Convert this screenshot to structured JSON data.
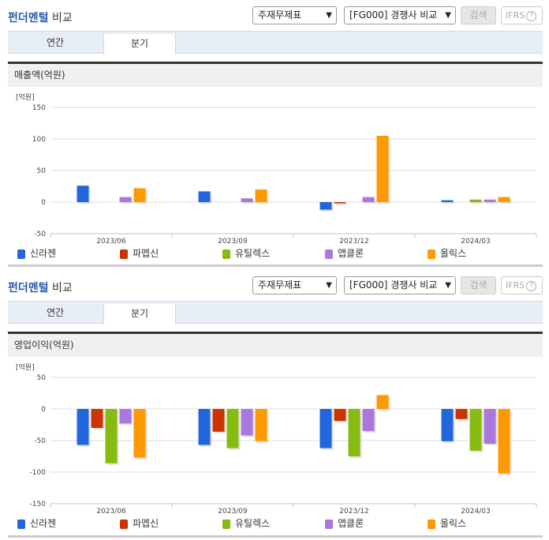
{
  "panels": [
    {
      "title_highlight": "펀더멘털",
      "title_rest": " 비교",
      "select_statement": "주재무제표",
      "select_compare": "[FG000] 경쟁사 비교",
      "search_label": "검색",
      "ifrs_label": "IFRS",
      "ifrs_help": "?",
      "tabs": [
        {
          "label": "연간"
        },
        {
          "label": "분기",
          "active": true
        }
      ],
      "subheading": "매출액(억원)",
      "unit": "[억원]",
      "y_ticks": [
        "150",
        "100",
        "50",
        "0",
        "-50"
      ]
    },
    {
      "title_highlight": "펀더멘털",
      "title_rest": " 비교",
      "select_statement": "주재무제표",
      "select_compare": "[FG000] 경쟁사 비교",
      "search_label": "검색",
      "ifrs_label": "IFRS",
      "ifrs_help": "?",
      "tabs": [
        {
          "label": "연간"
        },
        {
          "label": "분기",
          "active": true
        }
      ],
      "subheading": "영업이익(억원)",
      "unit": "[억원]",
      "y_ticks": [
        "50",
        "0",
        "-50",
        "-100",
        "-150"
      ]
    }
  ],
  "legend": [
    {
      "name": "신라젠",
      "color": "#2266dd"
    },
    {
      "name": "파멥신",
      "color": "#cc3300"
    },
    {
      "name": "유틸렉스",
      "color": "#88bb11"
    },
    {
      "name": "앱클론",
      "color": "#aa77dd"
    },
    {
      "name": "올릭스",
      "color": "#ff9900"
    }
  ],
  "chart_data": [
    {
      "type": "bar",
      "title": "매출액(억원)",
      "ylabel": "[억원]",
      "categories": [
        "2023/06",
        "2023/09",
        "2023/12",
        "2024/03"
      ],
      "ylim": [
        -50,
        150
      ],
      "yticks": [
        -50,
        0,
        50,
        100,
        150
      ],
      "grid": true,
      "legend_position": "bottom",
      "series": [
        {
          "name": "신라젠",
          "color": "#2266dd",
          "values": [
            26,
            17,
            -12,
            3
          ]
        },
        {
          "name": "파멥신",
          "color": "#cc3300",
          "values": [
            0,
            0,
            -2,
            0
          ]
        },
        {
          "name": "유틸렉스",
          "color": "#88bb11",
          "values": [
            0,
            0,
            0,
            4
          ]
        },
        {
          "name": "앱클론",
          "color": "#aa77dd",
          "values": [
            8,
            6,
            8,
            4
          ]
        },
        {
          "name": "올릭스",
          "color": "#ff9900",
          "values": [
            22,
            20,
            105,
            8
          ]
        }
      ]
    },
    {
      "type": "bar",
      "title": "영업이익(억원)",
      "ylabel": "[억원]",
      "categories": [
        "2023/06",
        "2023/09",
        "2023/12",
        "2024/03"
      ],
      "ylim": [
        -150,
        50
      ],
      "yticks": [
        -150,
        -100,
        -50,
        0,
        50
      ],
      "grid": true,
      "legend_position": "bottom",
      "series": [
        {
          "name": "신라젠",
          "color": "#2266dd",
          "values": [
            -57,
            -57,
            -62,
            -51
          ]
        },
        {
          "name": "파멥신",
          "color": "#cc3300",
          "values": [
            -30,
            -36,
            -19,
            -16
          ]
        },
        {
          "name": "유틸렉스",
          "color": "#88bb11",
          "values": [
            -86,
            -62,
            -75,
            -66
          ]
        },
        {
          "name": "앱클론",
          "color": "#aa77dd",
          "values": [
            -23,
            -42,
            -35,
            -55
          ]
        },
        {
          "name": "올릭스",
          "color": "#ff9900",
          "values": [
            -77,
            -51,
            22,
            -102
          ]
        }
      ]
    }
  ]
}
